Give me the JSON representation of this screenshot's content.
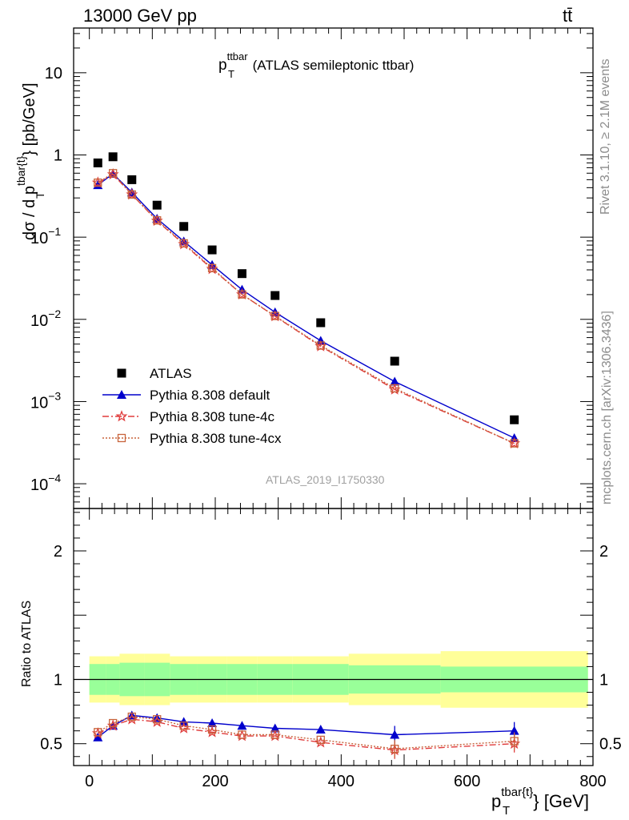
{
  "header": {
    "energy_label": "13000 GeV pp",
    "process_label": "tt̄"
  },
  "side_labels": {
    "rivet": "Rivet 3.1.10, ≥ 2.1M events",
    "mcplots": "mcplots.cern.ch [arXiv:1306.3436]"
  },
  "analysis_tag": "ATLAS_2019_I1750330",
  "colors": {
    "data": "#000000",
    "default": "#0000cc",
    "tune4c": "#e03c3c",
    "tune4cx": "#c8643c",
    "band_inner": "#99ff99",
    "band_outer": "#ffff99"
  },
  "chart_data": [
    {
      "type": "line",
      "panel": "main",
      "title_main": "p",
      "title_sub": "T",
      "title_sup": "ttbar",
      "title_rest": "(ATLAS semileptonic ttbar)",
      "ylabel": "dσ / d p_T^{tbar{t}} [pb/GeV]",
      "yscale": "log",
      "ylim": [
        5e-05,
        35
      ],
      "xlim": [
        -25,
        800
      ],
      "ytick_labels": [
        "10^-4",
        "10^-3",
        "10^-2",
        "10^-1",
        "1",
        "10"
      ],
      "x": [
        13.5,
        37.5,
        67.5,
        107.5,
        150,
        195,
        242.5,
        295,
        367.5,
        485,
        675
      ],
      "bin_edges": [
        0,
        27,
        48,
        87,
        128,
        172,
        218,
        267,
        323,
        412,
        558,
        792
      ],
      "series": [
        {
          "name": "ATLAS",
          "key": "data",
          "marker": "square",
          "values": [
            0.8,
            0.95,
            0.5,
            0.245,
            0.135,
            0.07,
            0.036,
            0.0195,
            0.0091,
            0.0031,
            0.0006
          ]
        },
        {
          "name": "Pythia 8.308 default",
          "key": "default",
          "marker": "triangle",
          "values": [
            0.43,
            0.59,
            0.35,
            0.168,
            0.089,
            0.046,
            0.023,
            0.0122,
            0.0055,
            0.00175,
            0.00036
          ]
        },
        {
          "name": "Pythia 8.308 tune-4c",
          "key": "tune4c",
          "marker": "star",
          "values": [
            0.46,
            0.58,
            0.33,
            0.158,
            0.082,
            0.041,
            0.0201,
            0.0109,
            0.0047,
            0.0014,
            0.00031
          ]
        },
        {
          "name": "Pythia 8.308 tune-4cx",
          "key": "tune4cx",
          "marker": "open-square",
          "values": [
            0.46,
            0.6,
            0.33,
            0.16,
            0.084,
            0.042,
            0.0201,
            0.011,
            0.0048,
            0.00145,
            0.00031
          ]
        }
      ]
    },
    {
      "type": "line",
      "panel": "ratio",
      "ylabel": "Ratio to ATLAS",
      "ylim": [
        0.33,
        2.33
      ],
      "xlim": [
        -25,
        800
      ],
      "yticks": [
        0.5,
        1,
        2
      ],
      "ytick_labels": [
        "0.5",
        "1",
        "2"
      ],
      "xticks": [
        0,
        200,
        400,
        600,
        800
      ],
      "xtick_labels": [
        "0",
        "200",
        "400",
        "600",
        "800"
      ],
      "xlabel_main": "p",
      "xlabel_sub": "T",
      "xlabel_sup": "tbar{t}",
      "xlabel_rest": "} [GeV]",
      "x": [
        13.5,
        37.5,
        67.5,
        107.5,
        150,
        195,
        242.5,
        295,
        367.5,
        485,
        675
      ],
      "bin_edges": [
        0,
        27,
        48,
        87,
        128,
        172,
        218,
        267,
        323,
        412,
        558,
        792
      ],
      "band_inner": {
        "lo": [
          0.88,
          0.88,
          0.87,
          0.87,
          0.88,
          0.88,
          0.88,
          0.88,
          0.88,
          0.89,
          0.9
        ],
        "hi": [
          1.12,
          1.12,
          1.13,
          1.13,
          1.12,
          1.12,
          1.12,
          1.12,
          1.12,
          1.11,
          1.1
        ]
      },
      "band_outer": {
        "lo": [
          0.82,
          0.82,
          0.8,
          0.8,
          0.82,
          0.82,
          0.82,
          0.82,
          0.82,
          0.8,
          0.78
        ],
        "hi": [
          1.18,
          1.18,
          1.2,
          1.2,
          1.18,
          1.18,
          1.18,
          1.18,
          1.18,
          1.2,
          1.22
        ]
      },
      "series": [
        {
          "name": "Pythia 8.308 default",
          "key": "default",
          "marker": "triangle",
          "values": [
            0.55,
            0.64,
            0.72,
            0.7,
            0.67,
            0.66,
            0.64,
            0.62,
            0.61,
            0.57,
            0.6
          ]
        },
        {
          "name": "Pythia 8.308 tune-4c",
          "key": "tune4c",
          "marker": "star",
          "values": [
            0.58,
            0.64,
            0.69,
            0.67,
            0.62,
            0.59,
            0.56,
            0.56,
            0.51,
            0.45,
            0.5
          ]
        },
        {
          "name": "Pythia 8.308 tune-4cx",
          "key": "tune4cx",
          "marker": "open-square",
          "values": [
            0.59,
            0.66,
            0.71,
            0.69,
            0.64,
            0.61,
            0.57,
            0.57,
            0.53,
            0.46,
            0.52
          ]
        }
      ]
    }
  ]
}
